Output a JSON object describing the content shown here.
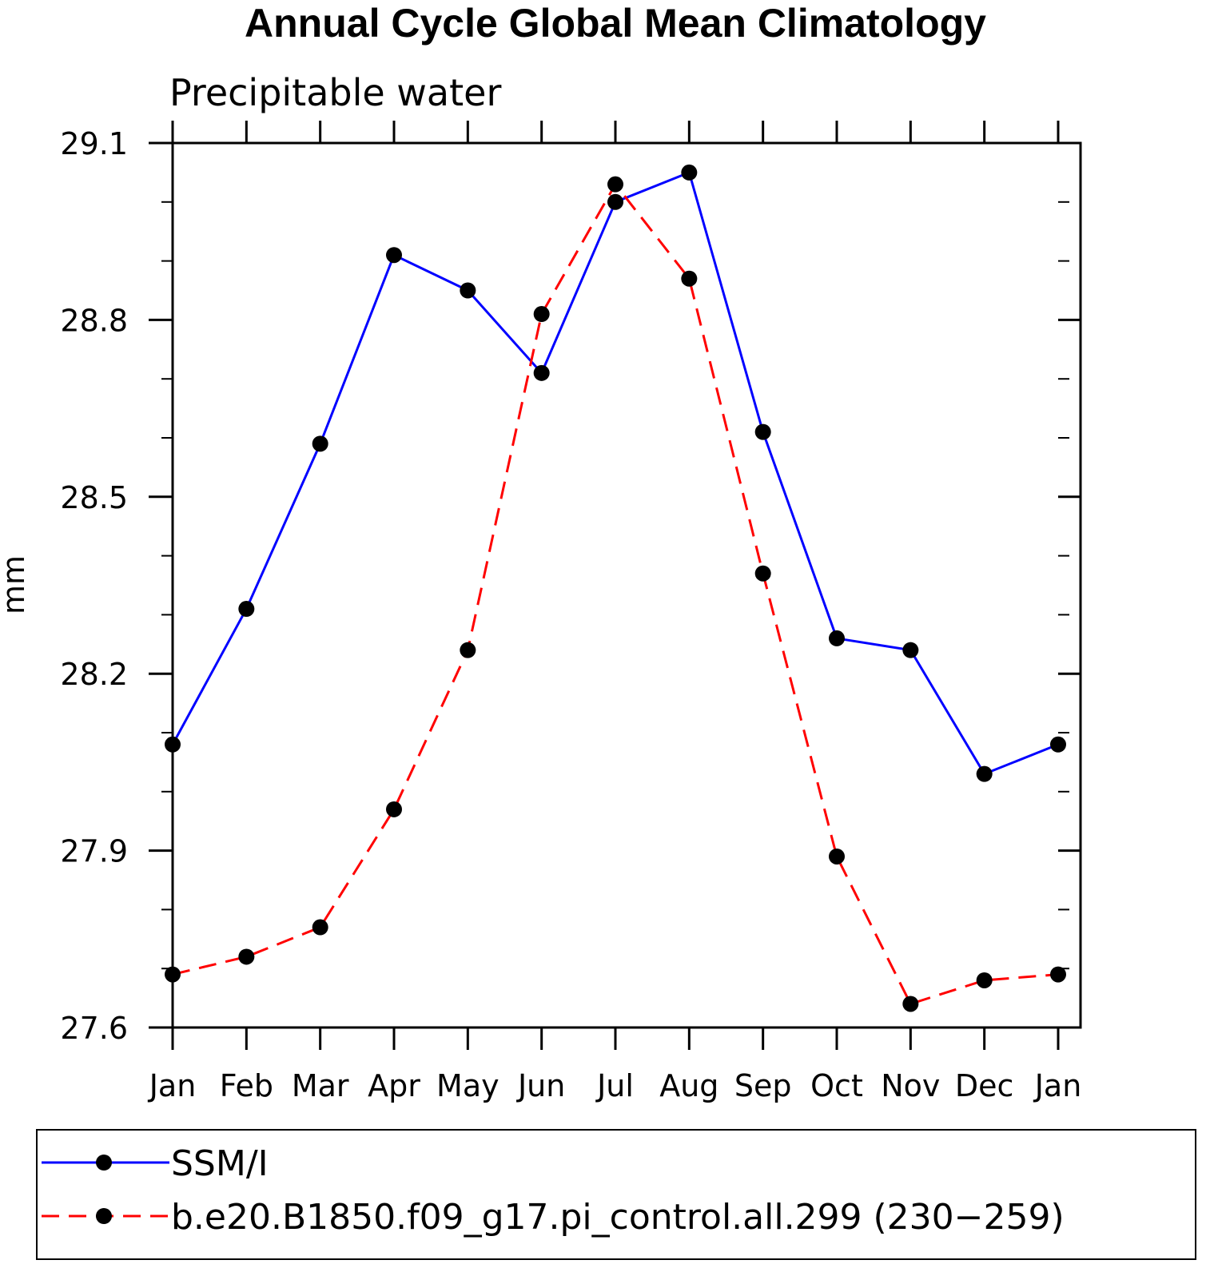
{
  "chart_data": {
    "type": "line",
    "title": "Annual Cycle Global Mean Climatology",
    "subtitle": "Precipitable water",
    "ylabel": "mm",
    "xlabel": "",
    "categories": [
      "Jan",
      "Feb",
      "Mar",
      "Apr",
      "May",
      "Jun",
      "Jul",
      "Aug",
      "Sep",
      "Oct",
      "Nov",
      "Dec",
      "Jan"
    ],
    "ylim": [
      27.6,
      29.1
    ],
    "yticks": [
      "27.6",
      "27.9",
      "28.2",
      "28.5",
      "28.8",
      "29.1"
    ],
    "grid": false,
    "legend_position": "bottom",
    "series": [
      {
        "name": "SSM/I",
        "color": "#0000ff",
        "line_style": "solid",
        "marker": "filled-circle",
        "values": [
          28.08,
          28.31,
          28.59,
          28.91,
          28.85,
          28.71,
          29.0,
          29.05,
          28.61,
          28.26,
          28.24,
          28.03,
          28.08
        ]
      },
      {
        "name": "b.e20.B1850.f09_g17.pi_control.all.299 (230−259)",
        "color": "#ff0000",
        "line_style": "dashed",
        "marker": "filled-circle",
        "values": [
          27.69,
          27.72,
          27.77,
          27.97,
          28.24,
          28.81,
          29.03,
          28.87,
          28.37,
          27.89,
          27.64,
          27.68,
          27.69
        ]
      }
    ]
  }
}
